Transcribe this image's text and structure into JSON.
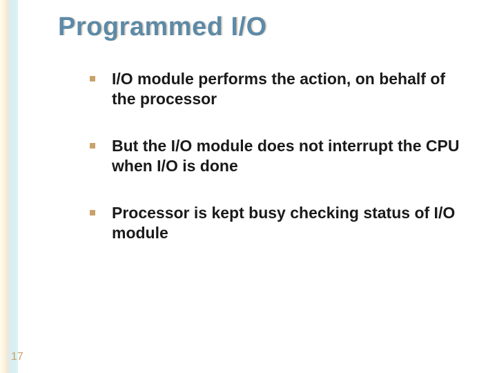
{
  "slide": {
    "title": "Programmed I/O",
    "title_color": "#5c8aa8",
    "title_shadow_color": "rgba(180,140,100,0.35)",
    "title_fontsize": 38,
    "background_color": "#ffffff",
    "page_number": "17",
    "page_number_color": "#c9a26b",
    "bullet_marker_color": "#c9a26b",
    "body_fontsize": 23,
    "body_color": "#1a1a1a",
    "bullets": [
      "I/O module performs the action, on behalf of the processor",
      "But the I/O module does not interrupt the CPU when I/O is done",
      "Processor is kept busy checking status of I/O module"
    ],
    "left_gradient_colors": [
      "#fef9ea",
      "#fdf4de",
      "#f6ecd8",
      "#eae9e4",
      "#dfeceb",
      "#d9eef0",
      "#d7f0f2",
      "#dbf3f3"
    ]
  }
}
